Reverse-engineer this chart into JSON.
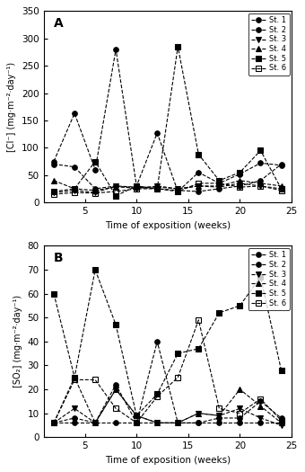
{
  "x_ticks": [
    5,
    10,
    15,
    20,
    25
  ],
  "panel_A": {
    "title": "A",
    "ylabel": "[Cl⁻] (mg·m⁻²·day⁻¹)",
    "xlabel": "Time of exposition (weeks)",
    "ylim": [
      0,
      350
    ],
    "yticks": [
      0,
      50,
      100,
      150,
      200,
      250,
      300,
      350
    ],
    "xlim": [
      1,
      25
    ],
    "series": [
      {
        "label": "St. 1",
        "x": [
          2,
          4,
          6,
          8,
          10,
          12,
          14,
          16,
          18,
          20,
          22,
          24
        ],
        "y": [
          70,
          65,
          25,
          30,
          28,
          25,
          22,
          20,
          25,
          30,
          40,
          70
        ],
        "marker": "o",
        "fillstyle": "full"
      },
      {
        "label": "St. 2",
        "x": [
          2,
          4,
          6,
          8,
          10,
          12,
          14,
          16,
          18,
          20,
          22,
          24
        ],
        "y": [
          75,
          163,
          60,
          280,
          30,
          127,
          20,
          55,
          35,
          52,
          72,
          68
        ],
        "marker": "o",
        "fillstyle": "full"
      },
      {
        "label": "St. 3",
        "x": [
          2,
          4,
          6,
          8,
          10,
          12,
          14,
          16,
          18,
          20,
          22,
          24
        ],
        "y": [
          18,
          22,
          18,
          30,
          25,
          30,
          25,
          30,
          28,
          35,
          30,
          25
        ],
        "marker": "v",
        "fillstyle": "full"
      },
      {
        "label": "St. 4",
        "x": [
          2,
          4,
          6,
          8,
          10,
          12,
          14,
          16,
          18,
          20,
          22,
          24
        ],
        "y": [
          40,
          25,
          22,
          28,
          28,
          28,
          25,
          30,
          30,
          40,
          35,
          30
        ],
        "marker": "^",
        "fillstyle": "full"
      },
      {
        "label": "St. 5",
        "x": [
          2,
          4,
          6,
          8,
          10,
          12,
          14,
          16,
          18,
          20,
          22,
          24
        ],
        "y": [
          20,
          25,
          75,
          12,
          30,
          25,
          285,
          88,
          40,
          55,
          95,
          25
        ],
        "marker": "s",
        "fillstyle": "full"
      },
      {
        "label": "St. 6",
        "x": [
          2,
          4,
          6,
          8,
          10,
          12,
          14,
          16,
          18,
          20,
          22,
          24
        ],
        "y": [
          15,
          18,
          17,
          20,
          25,
          25,
          20,
          35,
          35,
          28,
          30,
          22
        ],
        "marker": "s",
        "fillstyle": "none"
      }
    ]
  },
  "panel_B": {
    "title": "B",
    "ylabel": "[SO₂] (mg·m⁻²·day⁻¹)",
    "xlabel": "Time of exposition (weeks)",
    "ylim": [
      0,
      80
    ],
    "yticks": [
      0,
      10,
      20,
      30,
      40,
      50,
      60,
      70,
      80
    ],
    "xlim": [
      1,
      25
    ],
    "series": [
      {
        "label": "St. 1",
        "x": [
          2,
          4,
          6,
          8,
          10,
          12,
          14,
          16,
          18,
          20,
          22,
          24
        ],
        "y": [
          6,
          6,
          6,
          6,
          6,
          6,
          6,
          6,
          6,
          6,
          6,
          6
        ],
        "marker": "o",
        "fillstyle": "full"
      },
      {
        "label": "St. 2",
        "x": [
          2,
          4,
          6,
          8,
          10,
          12,
          14,
          16,
          18,
          20,
          22,
          24
        ],
        "y": [
          6,
          8,
          6,
          22,
          6,
          40,
          6,
          6,
          8,
          8,
          15,
          8
        ],
        "marker": "o",
        "fillstyle": "full"
      },
      {
        "label": "St. 3",
        "x": [
          2,
          4,
          6,
          8,
          10,
          12,
          14,
          16,
          18,
          20,
          22,
          24
        ],
        "y": [
          6,
          12,
          6,
          20,
          9,
          6,
          6,
          10,
          9,
          12,
          8,
          5
        ],
        "marker": "v",
        "fillstyle": "full"
      },
      {
        "label": "St. 4",
        "x": [
          2,
          4,
          6,
          8,
          10,
          12,
          14,
          16,
          18,
          20,
          22,
          24
        ],
        "y": [
          6,
          25,
          6,
          20,
          9,
          6,
          6,
          10,
          9,
          20,
          13,
          6
        ],
        "marker": "^",
        "fillstyle": "full"
      },
      {
        "label": "St. 5",
        "x": [
          2,
          4,
          6,
          8,
          10,
          12,
          14,
          16,
          18,
          20,
          22,
          24
        ],
        "y": [
          60,
          25,
          70,
          47,
          9,
          18,
          35,
          37,
          52,
          55,
          67,
          28
        ],
        "marker": "s",
        "fillstyle": "full"
      },
      {
        "label": "St. 6",
        "x": [
          2,
          4,
          6,
          8,
          10,
          12,
          14,
          16,
          18,
          20,
          22,
          24
        ],
        "y": [
          6,
          24,
          24,
          12,
          6,
          17,
          25,
          49,
          12,
          10,
          16,
          7
        ],
        "marker": "s",
        "fillstyle": "none"
      }
    ]
  }
}
